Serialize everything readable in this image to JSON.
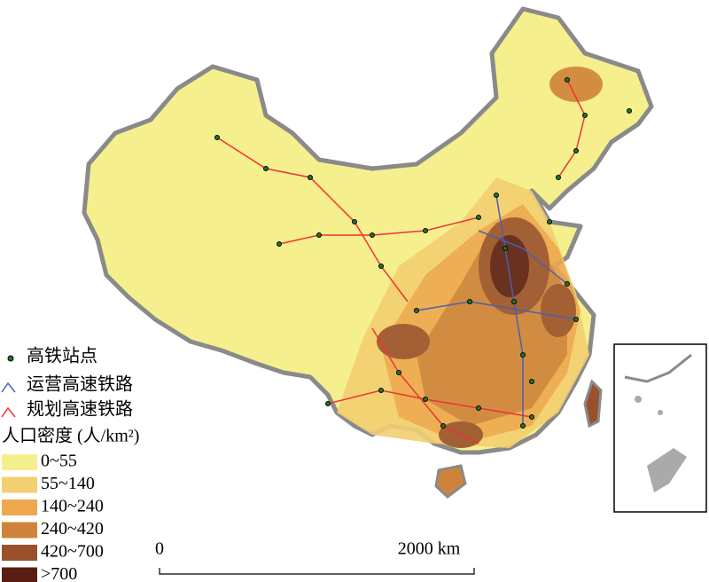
{
  "legend": {
    "station": "高铁站点",
    "operating": "运营高速铁路",
    "planned": "规划高速铁路",
    "density_title": "人口密度 (人/km²)",
    "classes": [
      {
        "label": "0~55",
        "color": "#f6ef8e"
      },
      {
        "label": "55~140",
        "color": "#f3cf72"
      },
      {
        "label": "140~240",
        "color": "#eda84e"
      },
      {
        "label": "240~420",
        "color": "#cf823a"
      },
      {
        "label": "420~700",
        "color": "#99512b"
      },
      {
        "label": ">700",
        "color": "#5a1d14"
      }
    ]
  },
  "scale": {
    "start": "0",
    "end": "2000 km"
  }
}
